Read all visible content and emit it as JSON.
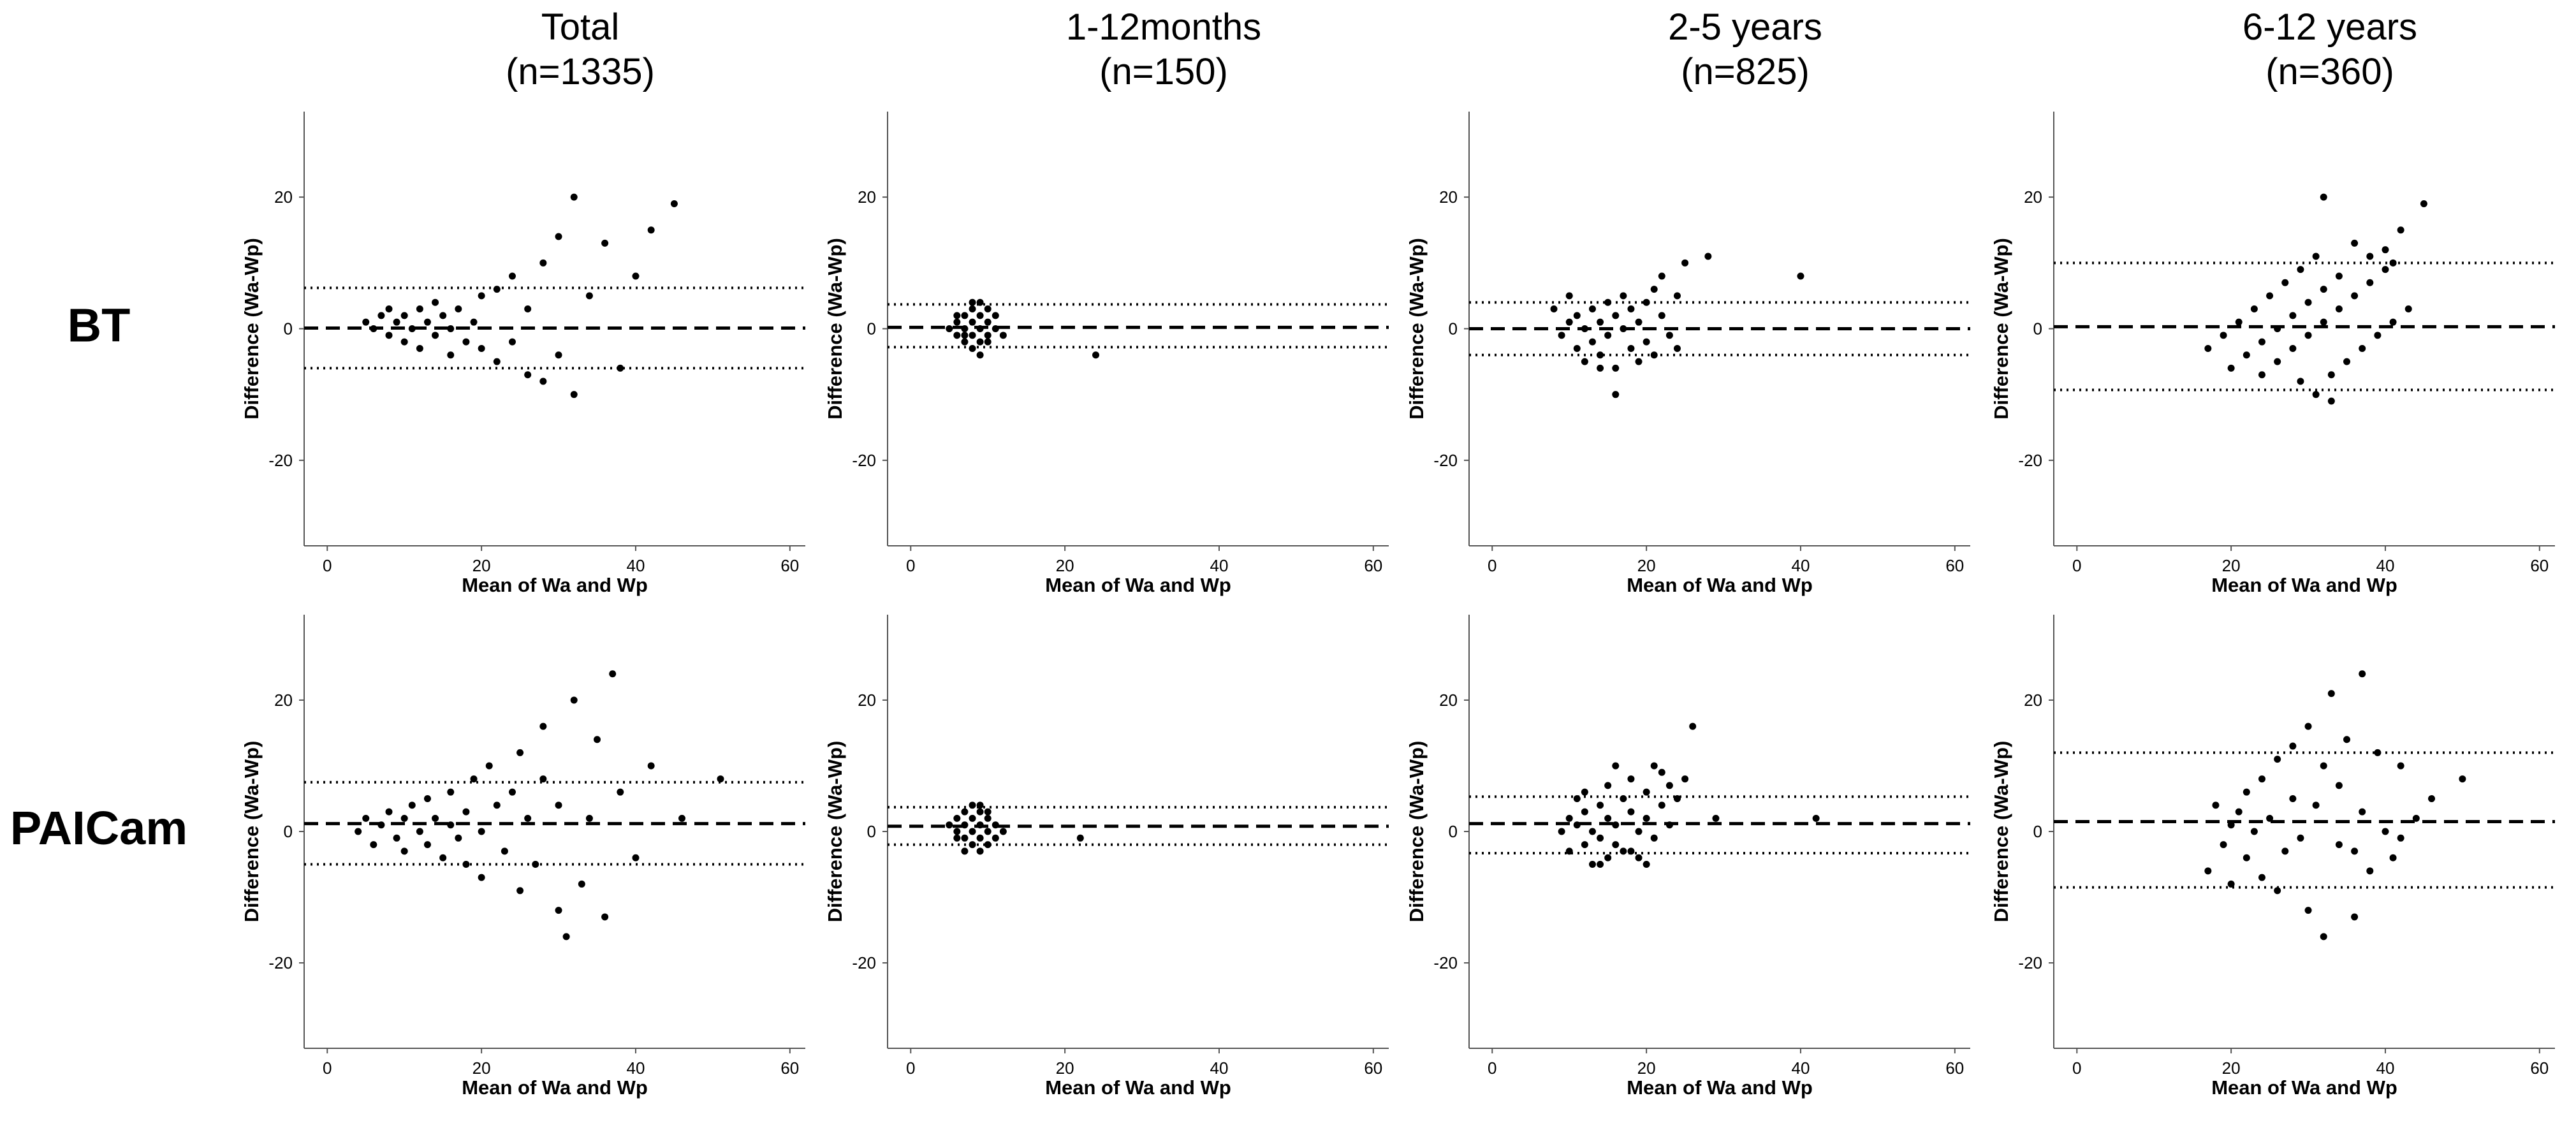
{
  "chart_data": [
    {
      "type": "scatter",
      "title": "Total",
      "subtitle": "(n=1335)",
      "row_label": "BT",
      "xlabel": "Mean of Wa and Wp",
      "ylabel": "Difference (Wa-Wp)",
      "color": "#000000",
      "xlim": [
        -3,
        62
      ],
      "ylim": [
        -33,
        33
      ],
      "xticks": [
        0,
        20,
        40,
        60
      ],
      "yticks": [
        -20,
        0,
        20
      ],
      "lines": [
        {
          "value": 6.2,
          "style": "dotted"
        },
        {
          "value": 0.1,
          "style": "dashed"
        },
        {
          "value": -6,
          "style": "dotted"
        }
      ],
      "x": [
        5,
        6,
        7,
        8,
        8,
        9,
        10,
        10,
        11,
        12,
        12,
        13,
        14,
        14,
        15,
        16,
        16,
        17,
        18,
        19,
        20,
        20,
        22,
        22,
        24,
        24,
        26,
        26,
        28,
        28,
        30,
        30,
        32,
        32,
        34,
        36,
        38,
        40,
        42,
        45
      ],
      "values": [
        1,
        0,
        2,
        -1,
        3,
        1,
        -2,
        2,
        0,
        3,
        -3,
        1,
        -1,
        4,
        2,
        -4,
        0,
        3,
        -2,
        1,
        5,
        -3,
        -5,
        6,
        8,
        -2,
        -7,
        3,
        10,
        -8,
        14,
        -4,
        20,
        -10,
        5,
        13,
        -6,
        8,
        15,
        19
      ]
    },
    {
      "type": "scatter",
      "title": "1-12months",
      "subtitle": "(n=150)",
      "xlabel": "Mean of Wa and Wp",
      "ylabel": "Difference (Wa-Wp)",
      "color": "#000000",
      "xlim": [
        -3,
        62
      ],
      "ylim": [
        -33,
        33
      ],
      "xticks": [
        0,
        20,
        40,
        60
      ],
      "yticks": [
        -20,
        0,
        20
      ],
      "lines": [
        {
          "value": 3.7,
          "style": "dotted"
        },
        {
          "value": 0.2,
          "style": "dashed"
        },
        {
          "value": -2.8,
          "style": "dotted"
        }
      ],
      "x": [
        5,
        6,
        6,
        7,
        7,
        7,
        8,
        8,
        8,
        8,
        9,
        9,
        9,
        9,
        10,
        10,
        10,
        11,
        11,
        12,
        24,
        6,
        8,
        9,
        7,
        10
      ],
      "values": [
        0,
        1,
        -1,
        2,
        0,
        -2,
        3,
        1,
        -1,
        -3,
        4,
        2,
        0,
        -2,
        3,
        1,
        -2,
        0,
        2,
        -1,
        -4,
        2,
        4,
        -4,
        -1,
        -1
      ]
    },
    {
      "type": "scatter",
      "title": "2-5 years",
      "subtitle": "(n=825)",
      "xlabel": "Mean of Wa and Wp",
      "ylabel": "Difference (Wa-Wp)",
      "color": "#000000",
      "xlim": [
        -3,
        62
      ],
      "ylim": [
        -33,
        33
      ],
      "xticks": [
        0,
        20,
        40,
        60
      ],
      "yticks": [
        -20,
        0,
        20
      ],
      "lines": [
        {
          "value": 4,
          "style": "dotted"
        },
        {
          "value": 0,
          "style": "dashed"
        },
        {
          "value": -4,
          "style": "dotted"
        }
      ],
      "x": [
        8,
        9,
        10,
        10,
        11,
        11,
        12,
        12,
        13,
        13,
        14,
        14,
        15,
        15,
        16,
        16,
        17,
        17,
        18,
        18,
        19,
        19,
        20,
        20,
        21,
        21,
        22,
        22,
        23,
        24,
        16,
        25,
        24,
        28,
        40,
        14
      ],
      "values": [
        3,
        -1,
        1,
        5,
        -3,
        2,
        0,
        -5,
        3,
        -2,
        1,
        -4,
        4,
        -1,
        2,
        -6,
        0,
        5,
        -3,
        3,
        1,
        -5,
        4,
        -2,
        6,
        -4,
        2,
        8,
        -1,
        5,
        -10,
        10,
        -3,
        11,
        8,
        -6
      ]
    },
    {
      "type": "scatter",
      "title": "6-12 years",
      "subtitle": "(n=360)",
      "xlabel": "Mean of Wa and Wp",
      "ylabel": "Difference (Wa-Wp)",
      "color": "#000000",
      "xlim": [
        -3,
        62
      ],
      "ylim": [
        -33,
        33
      ],
      "xticks": [
        0,
        20,
        40,
        60
      ],
      "yticks": [
        -20,
        0,
        20
      ],
      "lines": [
        {
          "value": 10,
          "style": "dotted"
        },
        {
          "value": 0.3,
          "style": "dashed"
        },
        {
          "value": -9.3,
          "style": "dotted"
        }
      ],
      "x": [
        17,
        19,
        21,
        23,
        25,
        27,
        29,
        31,
        20,
        22,
        24,
        26,
        28,
        30,
        32,
        34,
        24,
        26,
        28,
        30,
        32,
        34,
        36,
        38,
        40,
        29,
        31,
        33,
        35,
        37,
        39,
        41,
        43,
        42,
        45,
        32,
        36,
        38,
        40,
        41,
        33
      ],
      "values": [
        -3,
        -1,
        1,
        3,
        5,
        7,
        9,
        11,
        -6,
        -4,
        -2,
        0,
        2,
        4,
        6,
        8,
        -7,
        -5,
        -3,
        -1,
        1,
        3,
        5,
        7,
        9,
        -8,
        -10,
        -7,
        -5,
        -3,
        -1,
        1,
        3,
        15,
        19,
        20,
        13,
        11,
        12,
        10,
        -11
      ]
    },
    {
      "type": "scatter",
      "row_label": "PAICam",
      "xlabel": "Mean of Wa and Wp",
      "ylabel": "Difference (Wa-Wp)",
      "color": "#000000",
      "xlim": [
        -3,
        62
      ],
      "ylim": [
        -33,
        33
      ],
      "xticks": [
        0,
        20,
        40,
        60
      ],
      "yticks": [
        -20,
        0,
        20
      ],
      "lines": [
        {
          "value": 7.5,
          "style": "dotted"
        },
        {
          "value": 1.2,
          "style": "dashed"
        },
        {
          "value": -5,
          "style": "dotted"
        }
      ],
      "x": [
        4,
        5,
        6,
        7,
        8,
        9,
        10,
        10,
        11,
        12,
        13,
        13,
        14,
        15,
        16,
        16,
        17,
        18,
        18,
        19,
        20,
        20,
        21,
        22,
        23,
        24,
        25,
        25,
        26,
        27,
        28,
        28,
        30,
        30,
        31,
        32,
        33,
        34,
        35,
        36,
        37,
        38,
        40,
        42,
        46,
        51
      ],
      "values": [
        0,
        2,
        -2,
        1,
        3,
        -1,
        2,
        -3,
        4,
        0,
        -2,
        5,
        2,
        -4,
        1,
        6,
        -1,
        3,
        -5,
        8,
        0,
        -7,
        10,
        4,
        -3,
        6,
        -9,
        12,
        2,
        -5,
        16,
        8,
        -12,
        4,
        -16,
        20,
        -8,
        2,
        14,
        -13,
        24,
        6,
        -4,
        10,
        2,
        8
      ]
    },
    {
      "type": "scatter",
      "xlabel": "Mean of Wa and Wp",
      "ylabel": "Difference (Wa-Wp)",
      "color": "#000000",
      "xlim": [
        -3,
        62
      ],
      "ylim": [
        -33,
        33
      ],
      "xticks": [
        0,
        20,
        40,
        60
      ],
      "yticks": [
        -20,
        0,
        20
      ],
      "lines": [
        {
          "value": 3.7,
          "style": "dotted"
        },
        {
          "value": 0.8,
          "style": "dashed"
        },
        {
          "value": -2,
          "style": "dotted"
        }
      ],
      "x": [
        5,
        6,
        6,
        7,
        7,
        7,
        8,
        8,
        8,
        8,
        9,
        9,
        9,
        9,
        10,
        10,
        10,
        11,
        11,
        22,
        7,
        9,
        6,
        10,
        12
      ],
      "values": [
        1,
        0,
        2,
        -1,
        3,
        1,
        -2,
        0,
        2,
        4,
        -1,
        1,
        3,
        -3,
        0,
        2,
        -2,
        1,
        -1,
        -1,
        -3,
        4,
        -1,
        3,
        0
      ]
    },
    {
      "type": "scatter",
      "xlabel": "Mean of Wa and Wp",
      "ylabel": "Difference (Wa-Wp)",
      "color": "#000000",
      "xlim": [
        -3,
        62
      ],
      "ylim": [
        -33,
        33
      ],
      "xticks": [
        0,
        20,
        40,
        60
      ],
      "yticks": [
        -20,
        0,
        20
      ],
      "lines": [
        {
          "value": 5.3,
          "style": "dotted"
        },
        {
          "value": 1.2,
          "style": "dashed"
        },
        {
          "value": -3.3,
          "style": "dotted"
        }
      ],
      "x": [
        9,
        10,
        10,
        11,
        11,
        12,
        12,
        13,
        13,
        14,
        14,
        15,
        15,
        15,
        16,
        16,
        17,
        17,
        18,
        18,
        19,
        19,
        20,
        20,
        21,
        21,
        22,
        22,
        23,
        23,
        24,
        25,
        26,
        29,
        42,
        12,
        14,
        16,
        18,
        20
      ],
      "values": [
        0,
        2,
        -3,
        1,
        5,
        -2,
        3,
        0,
        -5,
        4,
        -1,
        2,
        -4,
        7,
        1,
        -2,
        5,
        -3,
        3,
        8,
        0,
        -4,
        6,
        2,
        10,
        -1,
        4,
        9,
        1,
        7,
        5,
        8,
        16,
        2,
        2,
        6,
        -5,
        10,
        -3,
        -5
      ]
    },
    {
      "type": "scatter",
      "xlabel": "Mean of Wa and Wp",
      "ylabel": "Difference (Wa-Wp)",
      "color": "#000000",
      "xlim": [
        -3,
        62
      ],
      "ylim": [
        -33,
        33
      ],
      "xticks": [
        0,
        20,
        40,
        60
      ],
      "yticks": [
        -20,
        0,
        20
      ],
      "lines": [
        {
          "value": 12,
          "style": "dotted"
        },
        {
          "value": 1.5,
          "style": "dashed"
        },
        {
          "value": -8.5,
          "style": "dotted"
        }
      ],
      "x": [
        17,
        18,
        19,
        20,
        20,
        21,
        22,
        22,
        23,
        24,
        24,
        25,
        26,
        26,
        27,
        28,
        28,
        29,
        30,
        30,
        31,
        32,
        32,
        33,
        34,
        34,
        35,
        36,
        37,
        37,
        38,
        39,
        40,
        41,
        42,
        42,
        44,
        46,
        50,
        36
      ],
      "values": [
        -6,
        4,
        -2,
        1,
        -8,
        3,
        -4,
        6,
        0,
        -7,
        8,
        2,
        -9,
        11,
        -3,
        5,
        13,
        -1,
        -12,
        16,
        4,
        -16,
        10,
        21,
        -2,
        7,
        14,
        -13,
        24,
        3,
        -6,
        12,
        0,
        -4,
        10,
        -1,
        2,
        5,
        8,
        -3
      ]
    }
  ]
}
